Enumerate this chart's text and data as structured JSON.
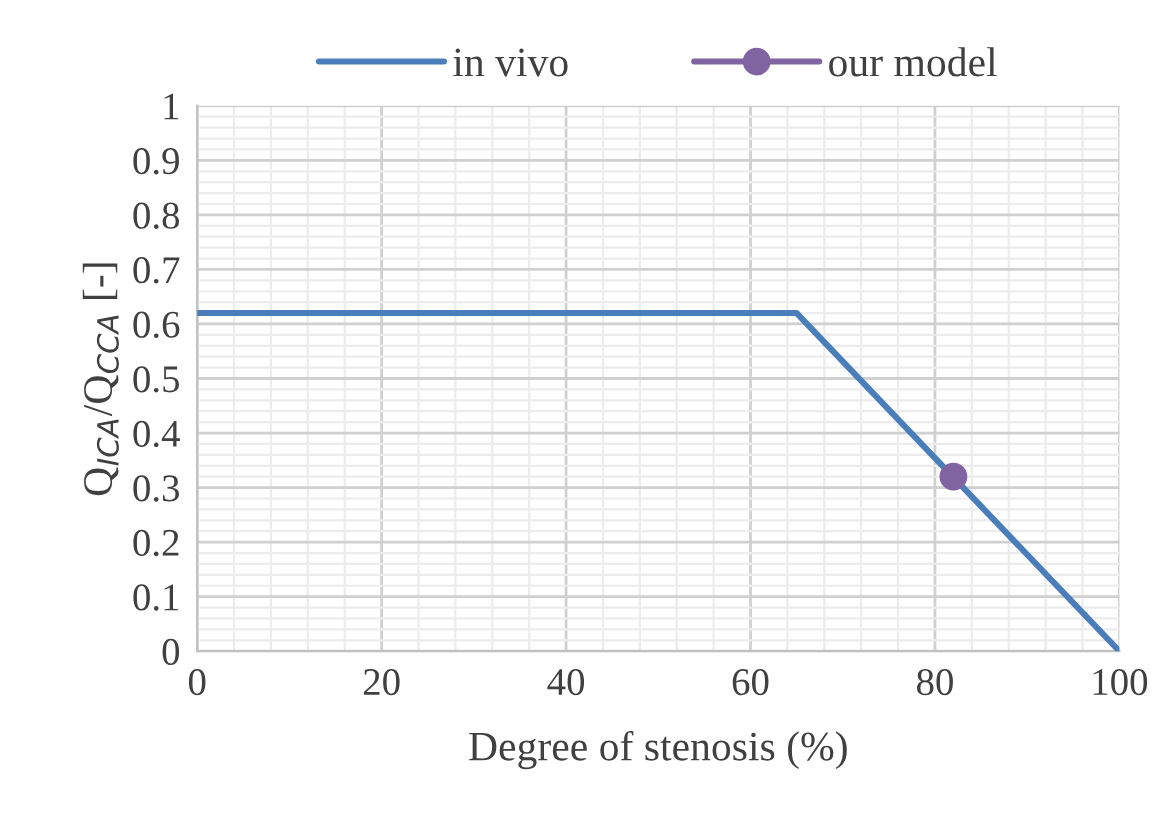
{
  "chart_data": {
    "type": "line",
    "xlabel": "Degree of stenosis (%)",
    "ylabel": "Q$_{ICA}$/Q$_{CCA}$ [-]",
    "series": [
      {
        "name": "in vivo",
        "color": "#4a7ebb",
        "x": [
          0,
          65,
          100
        ],
        "values": [
          0.62,
          0.62,
          0
        ]
      },
      {
        "name": "our model",
        "color": "#8064a2",
        "x": [
          82
        ],
        "values": [
          0.32
        ],
        "marker": "circle"
      }
    ],
    "xlim": [
      0,
      100
    ],
    "xticks": [
      0,
      20,
      40,
      60,
      80,
      100
    ],
    "ylim": [
      0,
      1
    ],
    "yticks": [
      0,
      0.1,
      0.2,
      0.3,
      0.4,
      0.5,
      0.6,
      0.7,
      0.8,
      0.9,
      1
    ],
    "grid": true,
    "legend": "top"
  }
}
